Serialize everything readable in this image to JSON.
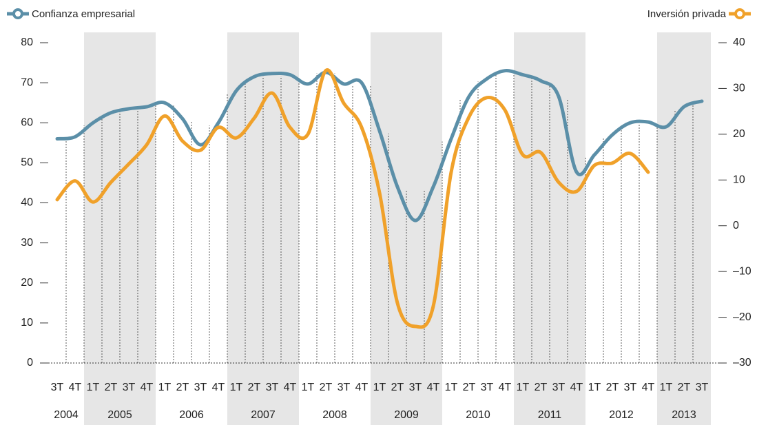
{
  "chart_data": {
    "type": "line",
    "categories": [
      "3T",
      "4T",
      "1T",
      "2T",
      "3T",
      "4T",
      "1T",
      "2T",
      "3T",
      "4T",
      "1T",
      "2T",
      "3T",
      "4T",
      "1T",
      "2T",
      "3T",
      "4T",
      "1T",
      "2T",
      "3T",
      "4T",
      "1T",
      "2T",
      "3T",
      "4T",
      "1T",
      "2T",
      "3T",
      "4T",
      "1T",
      "2T",
      "3T",
      "4T",
      "1T",
      "2T",
      "3T"
    ],
    "year_groups": [
      {
        "label": "2004",
        "count": 2
      },
      {
        "label": "2005",
        "count": 4
      },
      {
        "label": "2006",
        "count": 4
      },
      {
        "label": "2007",
        "count": 4
      },
      {
        "label": "2008",
        "count": 4
      },
      {
        "label": "2009",
        "count": 4
      },
      {
        "label": "2010",
        "count": 4
      },
      {
        "label": "2011",
        "count": 4
      },
      {
        "label": "2012",
        "count": 4
      },
      {
        "label": "2013",
        "count": 3
      }
    ],
    "shade_alternate_years": true,
    "series": [
      {
        "name": "Confianza empresarial",
        "color": "#5b8fa8",
        "axis": "y",
        "values": [
          56,
          56.5,
          60,
          62.5,
          63.5,
          64,
          65,
          61,
          54.5,
          60,
          68,
          71.5,
          72.3,
          72,
          69.7,
          72.6,
          69.7,
          70,
          58,
          44,
          35.6,
          44,
          56,
          66.6,
          71,
          73,
          72,
          70.5,
          66.6,
          47.7,
          52,
          57,
          60,
          60.2,
          59,
          64,
          65.4
        ]
      },
      {
        "name": "Inversión privada",
        "color": "#f0a12a",
        "axis": "y2",
        "values": [
          5.7,
          9.8,
          5.2,
          9.5,
          13.5,
          17.7,
          24,
          18.5,
          16.5,
          21.5,
          19.2,
          23.5,
          29,
          21.5,
          20,
          33.9,
          26.8,
          21.5,
          7.2,
          -16.9,
          -22,
          -17.6,
          11.7,
          23.8,
          28,
          25.3,
          15.5,
          16,
          9.5,
          7.5,
          13.2,
          13.7,
          15.8,
          11.7,
          null,
          null,
          null
        ]
      }
    ],
    "ylim": [
      0,
      80
    ],
    "yticks": [
      0,
      10,
      20,
      30,
      40,
      50,
      60,
      70,
      80
    ],
    "y2lim": [
      -30,
      40
    ],
    "y2ticks": [
      {
        "value": -30,
        "label": "–30"
      },
      {
        "value": -20,
        "label": "–20"
      },
      {
        "value": -10,
        "label": "–10"
      },
      0,
      10,
      20,
      30,
      40
    ]
  }
}
